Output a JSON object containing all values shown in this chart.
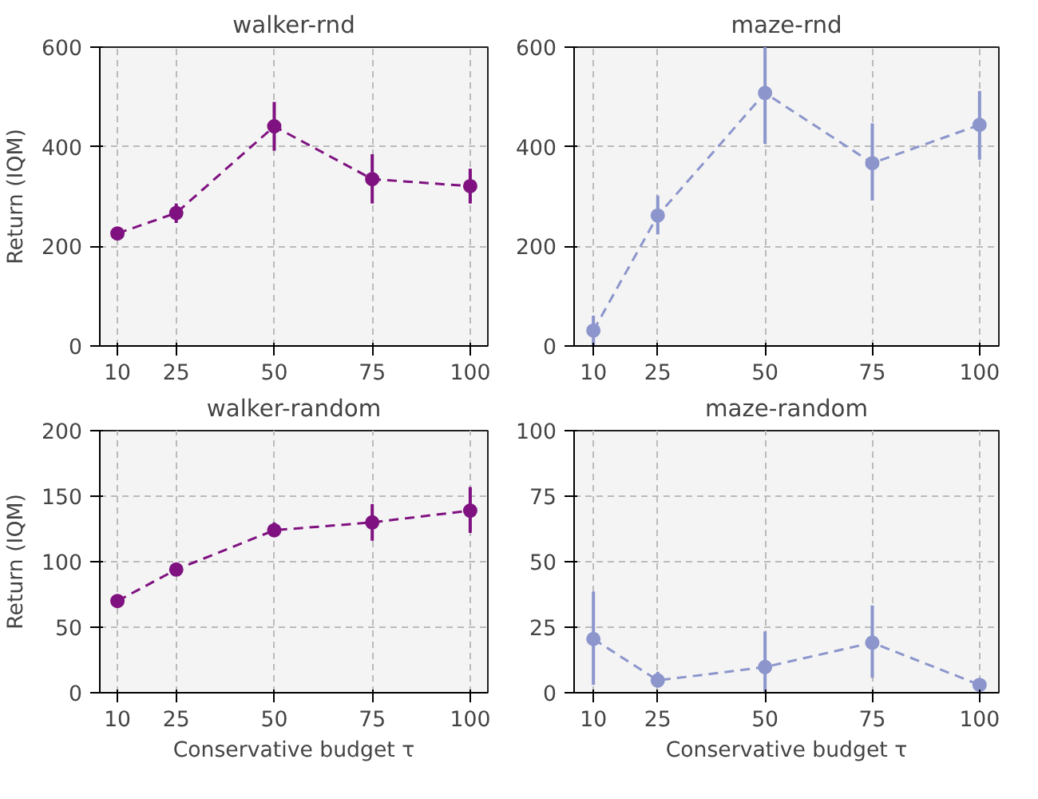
{
  "chart_data": [
    {
      "type": "line",
      "title": "walker-rnd",
      "ylabel": "Return (IQM)",
      "x": [
        10,
        25,
        50,
        75,
        100
      ],
      "xlim": [
        5.5,
        104.5
      ],
      "xticks": [
        10,
        25,
        50,
        75,
        100
      ],
      "ylim": [
        0,
        600
      ],
      "yticks": [
        0,
        200,
        400,
        600
      ],
      "grid": true,
      "marker": "circle",
      "line_style": "dashed",
      "series": [
        {
          "color": "#7f1280",
          "values": [
            226,
            267,
            441,
            335,
            321
          ],
          "errors": [
            [
              220,
              232
            ],
            [
              247,
              286
            ],
            [
              392,
              490
            ],
            [
              286,
              385
            ],
            [
              286,
              356
            ]
          ]
        }
      ]
    },
    {
      "type": "line",
      "title": "maze-rnd",
      "x": [
        10,
        25,
        50,
        75,
        100
      ],
      "xlim": [
        5.5,
        104.5
      ],
      "xticks": [
        10,
        25,
        50,
        75,
        100
      ],
      "ylim": [
        0,
        600
      ],
      "yticks": [
        0,
        200,
        400,
        600
      ],
      "grid": true,
      "marker": "circle",
      "line_style": "dashed",
      "series": [
        {
          "color": "#8c96cc",
          "values": [
            31,
            262,
            508,
            367,
            444
          ],
          "errors": [
            [
              0,
              61
            ],
            [
              224,
              302
            ],
            [
              406,
              600
            ],
            [
              292,
              447
            ],
            [
              374,
              512
            ]
          ]
        }
      ]
    },
    {
      "type": "line",
      "title": "walker-random",
      "ylabel": "Return (IQM)",
      "xlabel": "Conservative budget τ",
      "x": [
        10,
        25,
        50,
        75,
        100
      ],
      "xlim": [
        5.5,
        104.5
      ],
      "xticks": [
        10,
        25,
        50,
        75,
        100
      ],
      "ylim": [
        0,
        200
      ],
      "yticks": [
        0,
        50,
        100,
        150,
        200
      ],
      "grid": true,
      "marker": "circle",
      "line_style": "dashed",
      "series": [
        {
          "color": "#7f1280",
          "values": [
            70,
            94,
            124,
            130,
            139
          ],
          "errors": [
            [
              67,
              73
            ],
            [
              91,
              97
            ],
            [
              120,
              130
            ],
            [
              116,
              144
            ],
            [
              122,
              157
            ]
          ]
        }
      ]
    },
    {
      "type": "line",
      "title": "maze-random",
      "xlabel": "Conservative budget τ",
      "x": [
        10,
        25,
        50,
        75,
        100
      ],
      "xlim": [
        5.5,
        104.5
      ],
      "xticks": [
        10,
        25,
        50,
        75,
        100
      ],
      "ylim": [
        0,
        100
      ],
      "yticks": [
        0,
        25,
        50,
        75,
        100
      ],
      "grid": true,
      "marker": "circle",
      "line_style": "dashed",
      "series": [
        {
          "color": "#8c96cc",
          "values": [
            20.5,
            4.7,
            9.8,
            19.1,
            3
          ],
          "errors": [
            [
              3,
              38.6
            ],
            [
              2,
              8
            ],
            [
              0,
              23.4
            ],
            [
              5.7,
              33.3
            ],
            null
          ]
        }
      ]
    }
  ]
}
